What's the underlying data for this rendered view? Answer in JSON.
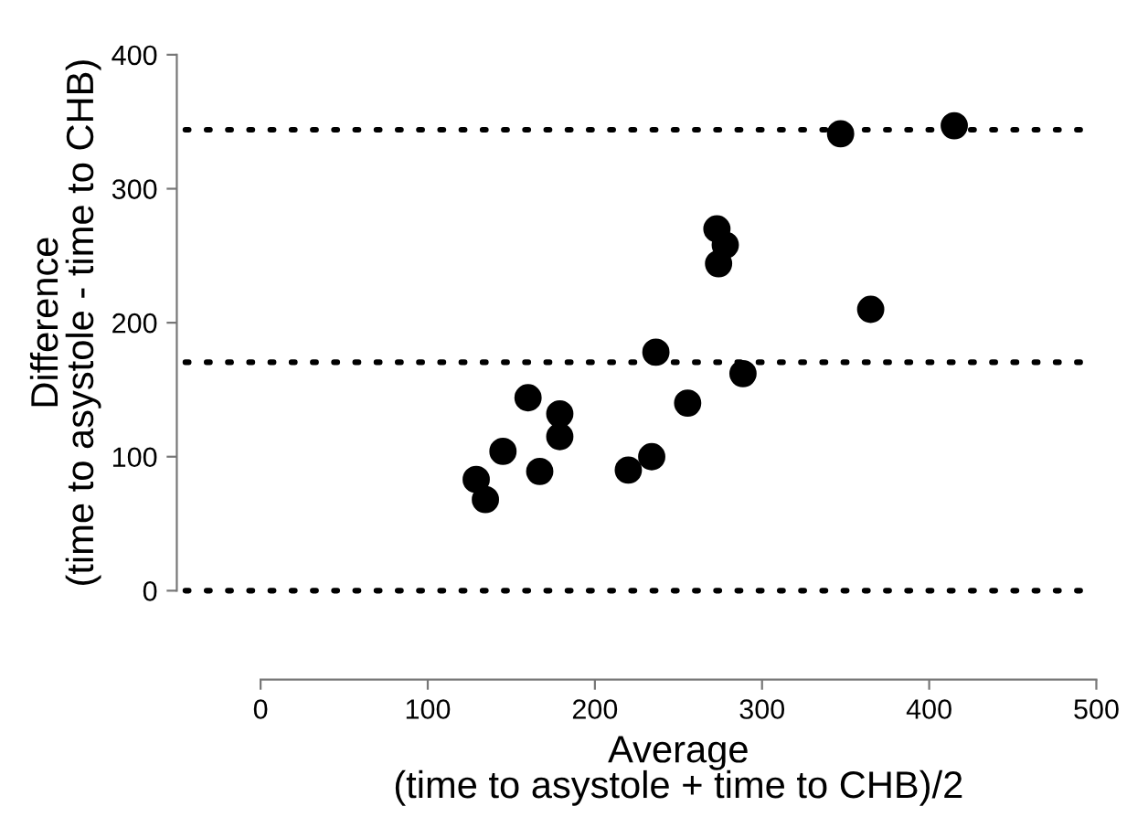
{
  "chart_data": {
    "type": "scatter",
    "xlabel": "Average\n(time to asystole + time to CHB)/2",
    "ylabel": "Difference\n(time to asystole - time to CHB)",
    "x": [
      129,
      134.5,
      145,
      160,
      167,
      179,
      179,
      220,
      234,
      236.5,
      255.5,
      273,
      278,
      274,
      288.6,
      347,
      365,
      415
    ],
    "series": [
      {
        "color": "#000000",
        "values": [
          83,
          68,
          104,
          144,
          89,
          132,
          115,
          90,
          100,
          178,
          140,
          270,
          258,
          244,
          162,
          341,
          210,
          347
        ]
      }
    ],
    "marker": "circle",
    "xlim": [
      0,
      500
    ],
    "xticks": [
      0,
      100,
      200,
      300,
      400,
      500
    ],
    "ylim": [
      0,
      400
    ],
    "yticks": [
      0,
      100,
      200,
      300,
      400
    ],
    "ref_lines": [
      {
        "axis": "y",
        "value": 344,
        "color": "#000000",
        "line_style": "dotted"
      },
      {
        "axis": "y",
        "value": 170.5,
        "color": "#000000",
        "line_style": "dotted"
      },
      {
        "axis": "y",
        "value": 0,
        "color": "#000000",
        "line_style": "dotted"
      }
    ],
    "grid": false,
    "legend": false
  }
}
